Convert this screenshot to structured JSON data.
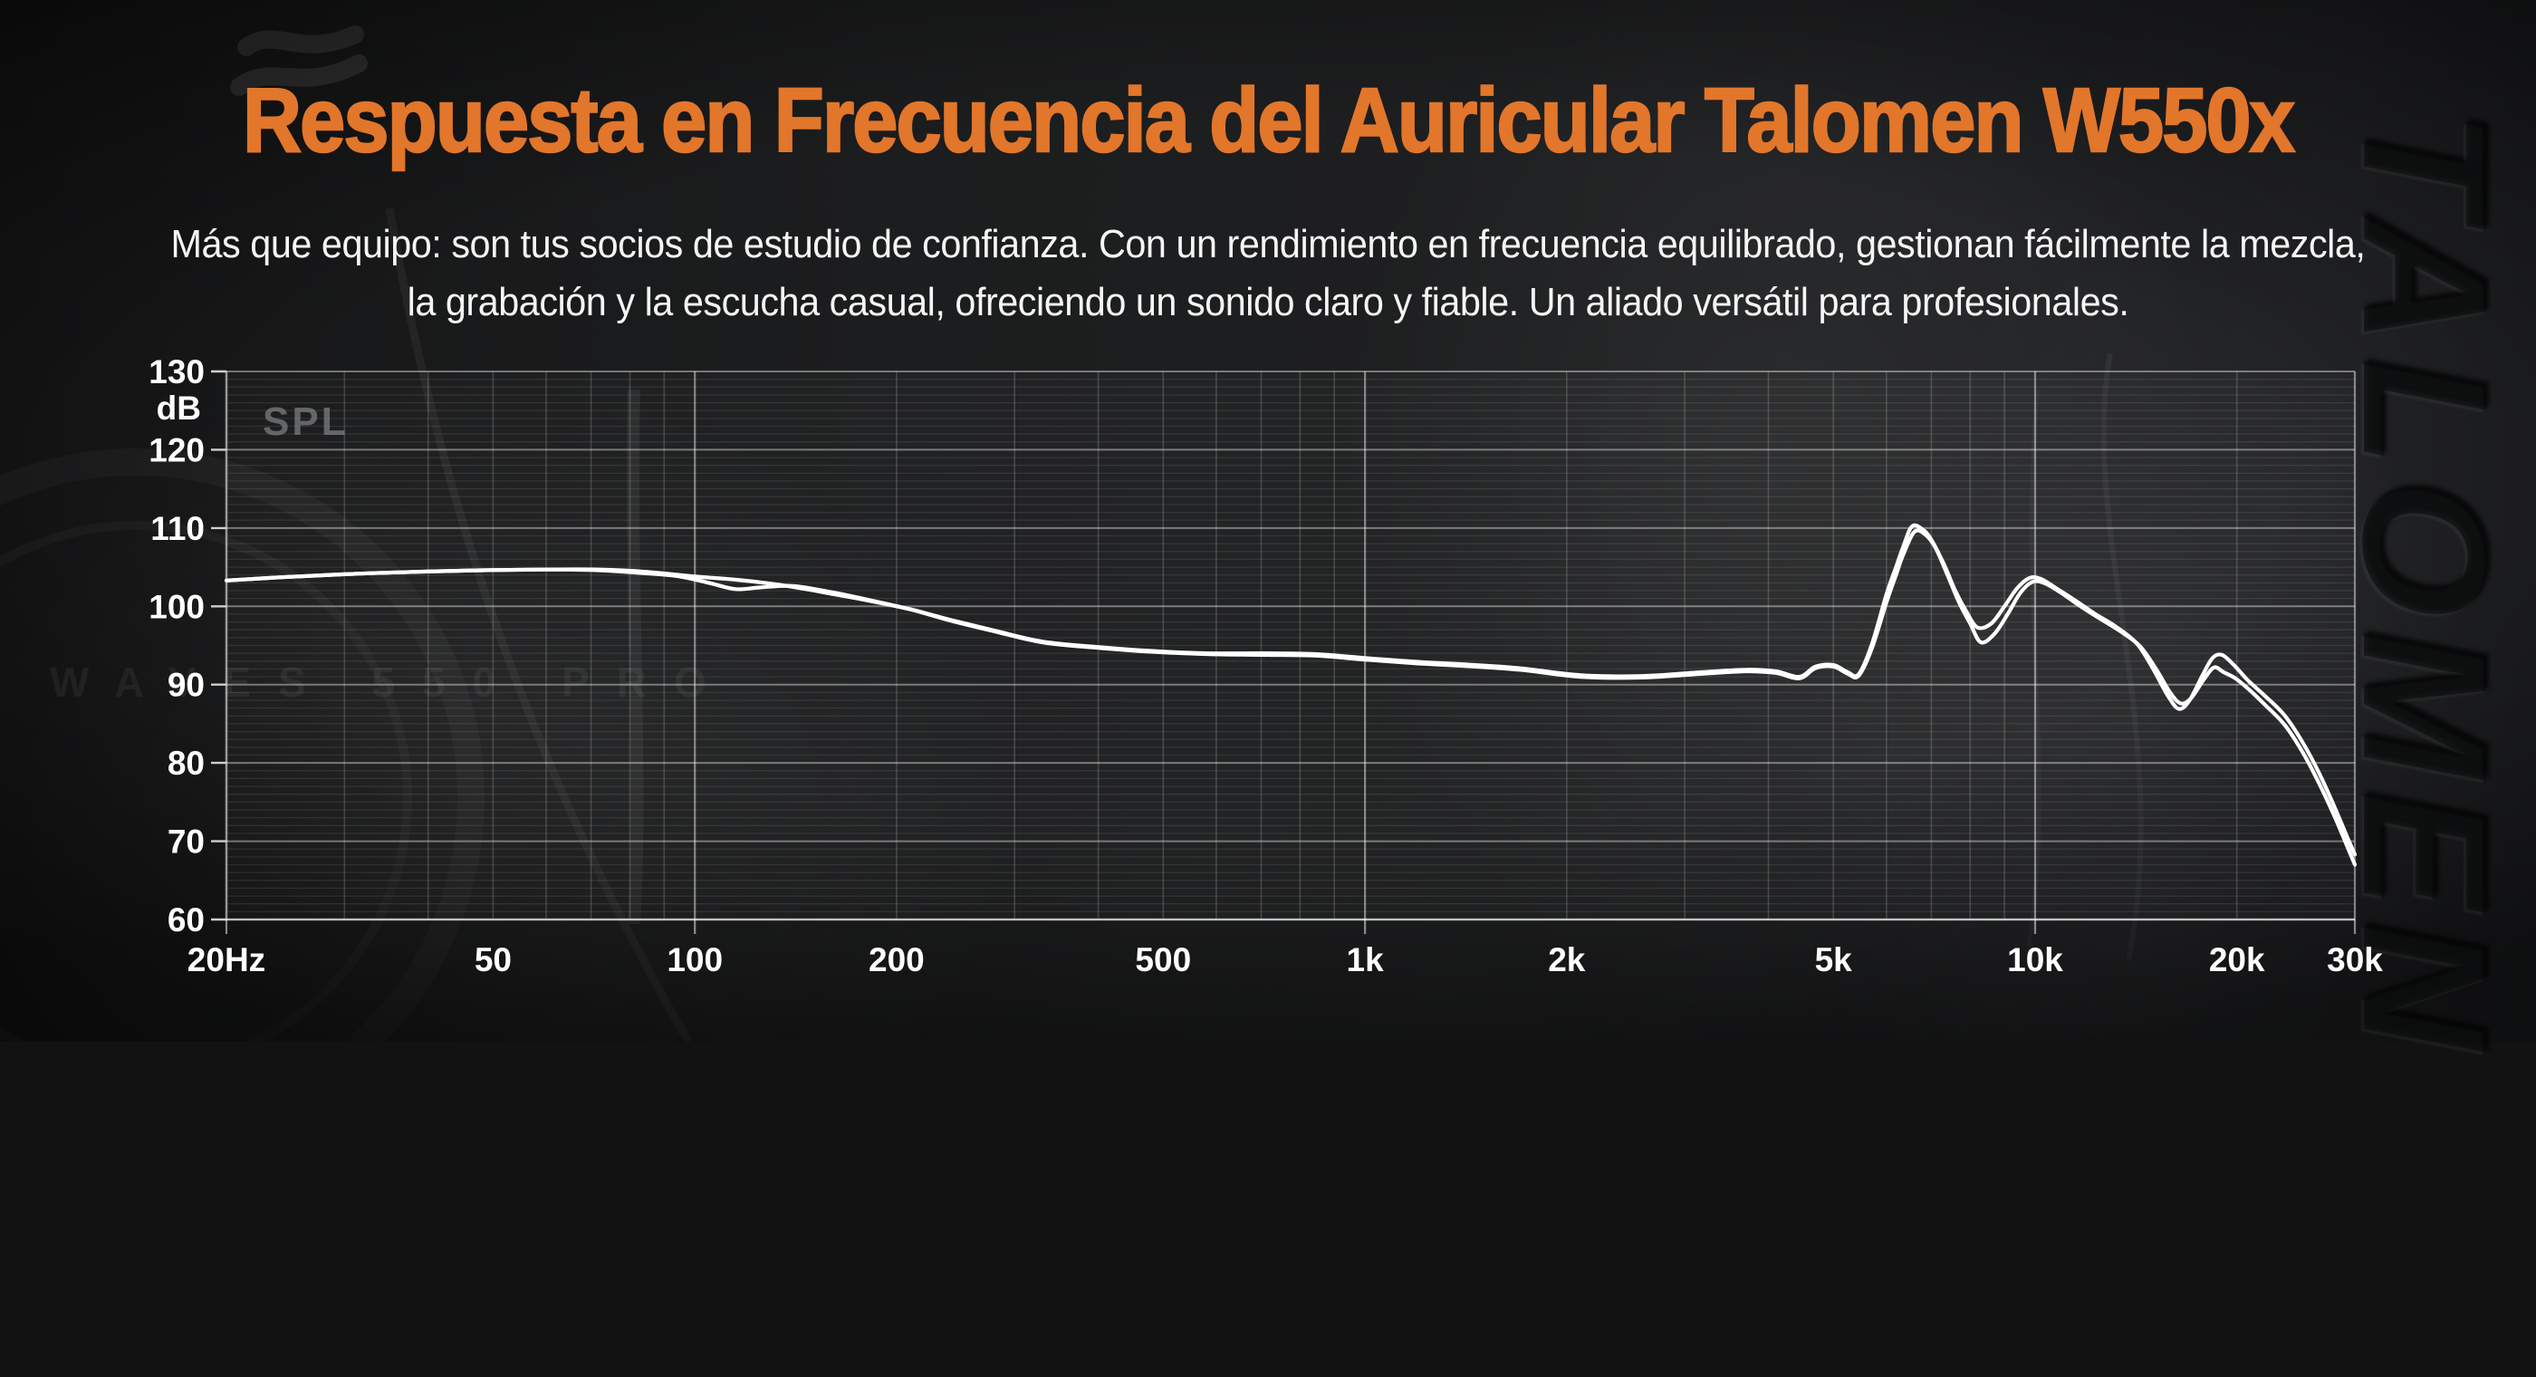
{
  "header": {
    "title": "Respuesta en Frecuencia del Auricular Talomen W550x",
    "subtitle_line1": "Más que equipo: son tus socios de estudio de confianza. Con un rendimiento en frecuencia equilibrado, gestionan fácilmente la mezcla,",
    "subtitle_line2": "la grabación y la escucha casual, ofreciendo un sonido claro y fiable. Un aliado versátil para profesionales."
  },
  "watermarks": {
    "product_ghost": "WAVES 550 PRO",
    "leather_emboss": "TALOMEN"
  },
  "colors": {
    "accent_orange": "#e2762b",
    "curve": "#ffffff",
    "axis_text": "#ffffff",
    "spl_text": "#9aa0a4",
    "background": "#1b1c1d"
  },
  "chart_data": {
    "type": "line",
    "title": "SPL",
    "corner_label": "SPL",
    "y_unit_label": "dB",
    "grid": true,
    "legend": "none",
    "x_axis": {
      "scale": "log",
      "min_hz": 20,
      "max_hz": 30000,
      "tick_hz": [
        20,
        50,
        100,
        200,
        500,
        1000,
        2000,
        5000,
        10000,
        20000,
        30000
      ],
      "tick_labels": [
        "20Hz",
        "50",
        "100",
        "200",
        "500",
        "1k",
        "2k",
        "5k",
        "10k",
        "20k",
        "30k"
      ],
      "major_hz": [
        100,
        1000,
        10000
      ],
      "bottom_tick_hz": [
        20,
        100,
        1000,
        10000,
        30000
      ]
    },
    "y_axis": {
      "min_db": 60,
      "max_db": 130,
      "tick_step_db": 10,
      "minor_step_db": 1,
      "tick_labels": [
        "130",
        "120",
        "110",
        "100",
        "90",
        "80",
        "70",
        "60"
      ]
    },
    "series": [
      {
        "name": "channel-left",
        "color": "#ffffff",
        "points": [
          [
            20,
            103.3
          ],
          [
            24,
            103.7
          ],
          [
            30,
            104.1
          ],
          [
            38,
            104.4
          ],
          [
            48,
            104.6
          ],
          [
            60,
            104.7
          ],
          [
            72,
            104.7
          ],
          [
            85,
            104.4
          ],
          [
            100,
            103.8
          ],
          [
            115,
            103.4
          ],
          [
            135,
            102.7
          ],
          [
            160,
            101.6
          ],
          [
            180,
            100.8
          ],
          [
            210,
            99.6
          ],
          [
            240,
            98.3
          ],
          [
            280,
            96.9
          ],
          [
            330,
            95.5
          ],
          [
            400,
            94.8
          ],
          [
            480,
            94.3
          ],
          [
            580,
            94.0
          ],
          [
            700,
            94.0
          ],
          [
            840,
            93.9
          ],
          [
            1000,
            93.4
          ],
          [
            1200,
            92.9
          ],
          [
            1400,
            92.6
          ],
          [
            1700,
            92.1
          ],
          [
            2100,
            91.2
          ],
          [
            2600,
            91.1
          ],
          [
            3200,
            91.6
          ],
          [
            3700,
            91.9
          ],
          [
            4100,
            91.7
          ],
          [
            4450,
            91.0
          ],
          [
            4700,
            92.3
          ],
          [
            5000,
            92.5
          ],
          [
            5250,
            91.6
          ],
          [
            5450,
            91.3
          ],
          [
            5700,
            95.0
          ],
          [
            6000,
            101.5
          ],
          [
            6200,
            105.0
          ],
          [
            6350,
            107.5
          ],
          [
            6550,
            110.2
          ],
          [
            6800,
            109.8
          ],
          [
            7000,
            108.5
          ],
          [
            7300,
            105.5
          ],
          [
            7600,
            102.0
          ],
          [
            7900,
            99.3
          ],
          [
            8200,
            97.3
          ],
          [
            8600,
            97.8
          ],
          [
            9000,
            100.0
          ],
          [
            9400,
            102.3
          ],
          [
            9800,
            103.6
          ],
          [
            10200,
            103.5
          ],
          [
            10800,
            102.2
          ],
          [
            11500,
            100.7
          ],
          [
            12300,
            99.0
          ],
          [
            13200,
            97.4
          ],
          [
            14200,
            95.2
          ],
          [
            15000,
            92.0
          ],
          [
            15800,
            88.5
          ],
          [
            16400,
            86.9
          ],
          [
            17000,
            88.0
          ],
          [
            17800,
            91.3
          ],
          [
            18400,
            93.4
          ],
          [
            19000,
            93.8
          ],
          [
            19800,
            92.5
          ],
          [
            20800,
            90.5
          ],
          [
            22000,
            88.6
          ],
          [
            23500,
            86.2
          ],
          [
            25000,
            82.8
          ],
          [
            26500,
            78.8
          ],
          [
            28000,
            74.3
          ],
          [
            29300,
            70.3
          ],
          [
            30000,
            68.3
          ]
        ]
      },
      {
        "name": "channel-right",
        "color": "#ffffff",
        "points": [
          [
            20,
            103.3
          ],
          [
            24,
            103.7
          ],
          [
            30,
            104.1
          ],
          [
            38,
            104.4
          ],
          [
            48,
            104.6
          ],
          [
            60,
            104.7
          ],
          [
            72,
            104.6
          ],
          [
            85,
            104.2
          ],
          [
            95,
            103.8
          ],
          [
            105,
            103.0
          ],
          [
            115,
            102.2
          ],
          [
            125,
            102.4
          ],
          [
            140,
            102.6
          ],
          [
            160,
            101.8
          ],
          [
            180,
            100.9
          ],
          [
            210,
            99.6
          ],
          [
            240,
            98.2
          ],
          [
            280,
            96.8
          ],
          [
            330,
            95.4
          ],
          [
            400,
            94.7
          ],
          [
            480,
            94.2
          ],
          [
            580,
            93.9
          ],
          [
            700,
            93.8
          ],
          [
            840,
            93.7
          ],
          [
            1000,
            93.2
          ],
          [
            1200,
            92.7
          ],
          [
            1400,
            92.4
          ],
          [
            1700,
            91.9
          ],
          [
            2100,
            91.0
          ],
          [
            2600,
            90.9
          ],
          [
            3200,
            91.4
          ],
          [
            3700,
            91.7
          ],
          [
            4100,
            91.5
          ],
          [
            4450,
            90.8
          ],
          [
            4700,
            92.1
          ],
          [
            5000,
            92.3
          ],
          [
            5250,
            91.4
          ],
          [
            5450,
            91.1
          ],
          [
            5700,
            94.5
          ],
          [
            6000,
            100.5
          ],
          [
            6200,
            104.0
          ],
          [
            6350,
            106.5
          ],
          [
            6600,
            109.5
          ],
          [
            6850,
            109.2
          ],
          [
            7100,
            107.5
          ],
          [
            7400,
            104.0
          ],
          [
            7700,
            100.5
          ],
          [
            8000,
            97.8
          ],
          [
            8300,
            95.4
          ],
          [
            8700,
            96.5
          ],
          [
            9100,
            99.0
          ],
          [
            9500,
            101.7
          ],
          [
            9900,
            103.1
          ],
          [
            10300,
            103.0
          ],
          [
            10900,
            101.8
          ],
          [
            11600,
            100.2
          ],
          [
            12400,
            98.6
          ],
          [
            13300,
            97.0
          ],
          [
            14300,
            95.0
          ],
          [
            15100,
            92.2
          ],
          [
            15900,
            89.0
          ],
          [
            16500,
            87.6
          ],
          [
            17100,
            88.3
          ],
          [
            17900,
            90.8
          ],
          [
            18500,
            92.2
          ],
          [
            19100,
            91.6
          ],
          [
            19900,
            90.8
          ],
          [
            20900,
            89.3
          ],
          [
            22100,
            87.3
          ],
          [
            23600,
            84.8
          ],
          [
            25100,
            81.3
          ],
          [
            26600,
            77.2
          ],
          [
            28100,
            72.8
          ],
          [
            29400,
            68.8
          ],
          [
            30000,
            67.0
          ]
        ]
      }
    ]
  }
}
